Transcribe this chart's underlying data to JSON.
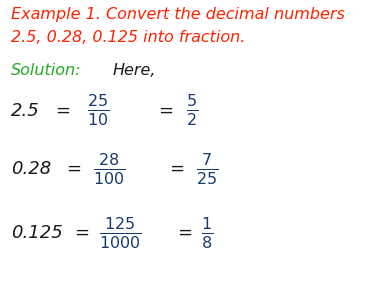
{
  "bg_color": "#ffffff",
  "title_line1": "Example 1. Convert the decimal numbers",
  "title_line2": "2.5, 0.28, 0.125 into fraction.",
  "title_color": "#ff2200",
  "solution_color": "#22aa22",
  "frac_color": "#1a3a6e",
  "black_color": "#1a1a1a",
  "fig_width": 3.8,
  "fig_height": 2.99,
  "dpi": 100
}
